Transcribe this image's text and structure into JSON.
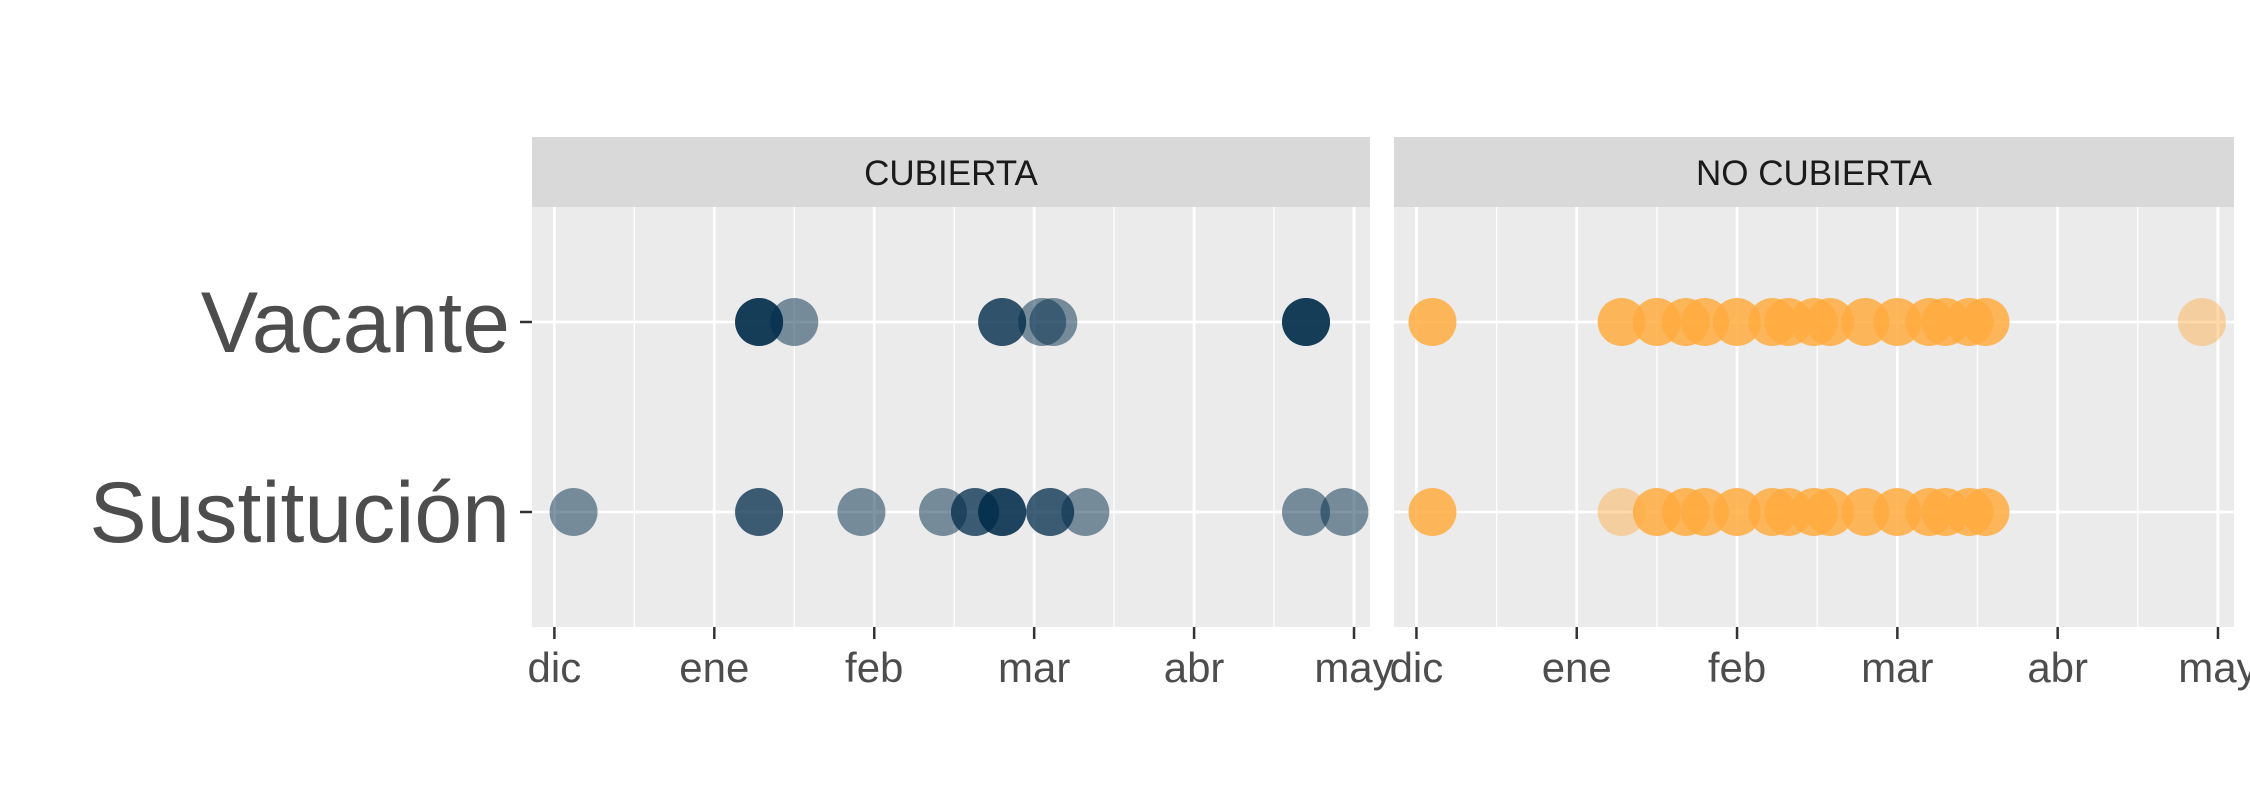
{
  "chart_data": {
    "type": "scatter",
    "y_categories": [
      "Vacante",
      "Sustitución"
    ],
    "x_tick_labels": [
      "dic",
      "ene",
      "feb",
      "mar",
      "abr",
      "may"
    ],
    "x_range": [
      -0.14,
      5.1
    ],
    "panels": [
      {
        "title": "CUBIERTA",
        "color": "#002b49",
        "points": [
          {
            "y": "Vacante",
            "x": 1.28,
            "a": 0.55
          },
          {
            "y": "Vacante",
            "x": 1.28,
            "a": 0.55
          },
          {
            "y": "Vacante",
            "x": 1.28,
            "a": 0.55
          },
          {
            "y": "Vacante",
            "x": 1.5,
            "a": 0.5
          },
          {
            "y": "Vacante",
            "x": 2.8,
            "a": 0.55
          },
          {
            "y": "Vacante",
            "x": 2.8,
            "a": 0.55
          },
          {
            "y": "Vacante",
            "x": 3.05,
            "a": 0.5
          },
          {
            "y": "Vacante",
            "x": 3.12,
            "a": 0.5
          },
          {
            "y": "Vacante",
            "x": 4.7,
            "a": 0.55
          },
          {
            "y": "Vacante",
            "x": 4.7,
            "a": 0.55
          },
          {
            "y": "Vacante",
            "x": 4.7,
            "a": 0.55
          },
          {
            "y": "Sustitución",
            "x": 0.12,
            "a": 0.5
          },
          {
            "y": "Sustitución",
            "x": 1.28,
            "a": 0.5
          },
          {
            "y": "Sustitución",
            "x": 1.28,
            "a": 0.5
          },
          {
            "y": "Sustitución",
            "x": 1.92,
            "a": 0.5
          },
          {
            "y": "Sustitución",
            "x": 2.43,
            "a": 0.5
          },
          {
            "y": "Sustitución",
            "x": 2.63,
            "a": 0.5
          },
          {
            "y": "Sustitución",
            "x": 2.63,
            "a": 0.5
          },
          {
            "y": "Sustitución",
            "x": 2.8,
            "a": 0.5
          },
          {
            "y": "Sustitución",
            "x": 2.8,
            "a": 0.5
          },
          {
            "y": "Sustitución",
            "x": 2.8,
            "a": 0.5
          },
          {
            "y": "Sustitución",
            "x": 3.1,
            "a": 0.5
          },
          {
            "y": "Sustitución",
            "x": 3.1,
            "a": 0.5
          },
          {
            "y": "Sustitución",
            "x": 3.32,
            "a": 0.5
          },
          {
            "y": "Sustitución",
            "x": 4.7,
            "a": 0.5
          },
          {
            "y": "Sustitución",
            "x": 4.94,
            "a": 0.5
          }
        ]
      },
      {
        "title": "NO CUBIERTA",
        "color": "#ffab40",
        "points": [
          {
            "y": "Vacante",
            "x": 0.1,
            "a": 0.85
          },
          {
            "y": "Vacante",
            "x": 1.28,
            "a": 0.85
          },
          {
            "y": "Vacante",
            "x": 1.5,
            "a": 0.85
          },
          {
            "y": "Vacante",
            "x": 1.68,
            "a": 0.85
          },
          {
            "y": "Vacante",
            "x": 1.8,
            "a": 0.85
          },
          {
            "y": "Vacante",
            "x": 2.0,
            "a": 0.85
          },
          {
            "y": "Vacante",
            "x": 2.22,
            "a": 0.85
          },
          {
            "y": "Vacante",
            "x": 2.32,
            "a": 0.85
          },
          {
            "y": "Vacante",
            "x": 2.48,
            "a": 0.85
          },
          {
            "y": "Vacante",
            "x": 2.58,
            "a": 0.85
          },
          {
            "y": "Vacante",
            "x": 2.8,
            "a": 0.85
          },
          {
            "y": "Vacante",
            "x": 3.0,
            "a": 0.85
          },
          {
            "y": "Vacante",
            "x": 3.2,
            "a": 0.85
          },
          {
            "y": "Vacante",
            "x": 3.3,
            "a": 0.85
          },
          {
            "y": "Vacante",
            "x": 3.45,
            "a": 0.85
          },
          {
            "y": "Vacante",
            "x": 3.55,
            "a": 0.85
          },
          {
            "y": "Vacante",
            "x": 4.9,
            "a": 0.45
          },
          {
            "y": "Sustitución",
            "x": 0.1,
            "a": 0.85
          },
          {
            "y": "Sustitución",
            "x": 1.28,
            "a": 0.45
          },
          {
            "y": "Sustitución",
            "x": 1.5,
            "a": 0.85
          },
          {
            "y": "Sustitución",
            "x": 1.68,
            "a": 0.85
          },
          {
            "y": "Sustitución",
            "x": 1.8,
            "a": 0.85
          },
          {
            "y": "Sustitución",
            "x": 2.0,
            "a": 0.85
          },
          {
            "y": "Sustitución",
            "x": 2.22,
            "a": 0.85
          },
          {
            "y": "Sustitución",
            "x": 2.32,
            "a": 0.85
          },
          {
            "y": "Sustitución",
            "x": 2.48,
            "a": 0.85
          },
          {
            "y": "Sustitución",
            "x": 2.58,
            "a": 0.85
          },
          {
            "y": "Sustitución",
            "x": 2.8,
            "a": 0.85
          },
          {
            "y": "Sustitución",
            "x": 3.0,
            "a": 0.85
          },
          {
            "y": "Sustitución",
            "x": 3.2,
            "a": 0.85
          },
          {
            "y": "Sustitución",
            "x": 3.3,
            "a": 0.85
          },
          {
            "y": "Sustitución",
            "x": 3.45,
            "a": 0.85
          },
          {
            "y": "Sustitución",
            "x": 3.55,
            "a": 0.85
          }
        ]
      }
    ],
    "grid": true,
    "legend": "none"
  }
}
